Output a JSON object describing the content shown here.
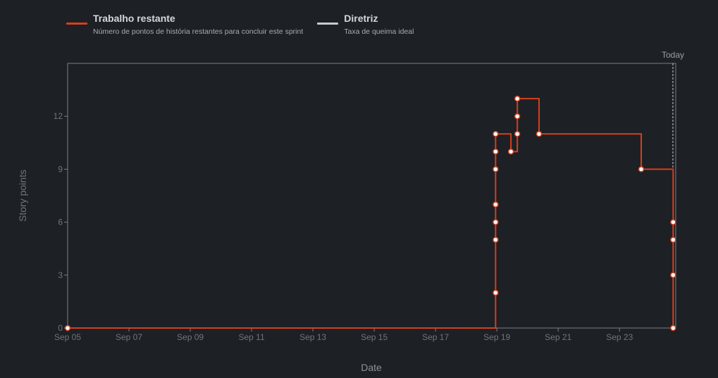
{
  "legend": [
    {
      "title": "Trabalho restante",
      "description": "Número de pontos de história restantes para concluir este sprint",
      "color": "#d4401e"
    },
    {
      "title": "Diretriz",
      "description": "Taxa de queima ideal",
      "color": "#c5cad3"
    }
  ],
  "chart_data": {
    "type": "line",
    "xlabel": "Date",
    "ylabel": "Story points",
    "today_label": "Today",
    "xlim": [
      "2018-09-05",
      "2018-09-24 20:00"
    ],
    "ylim": [
      0,
      15
    ],
    "x_ticks": [
      "Sep 05",
      "Sep 07",
      "Sep 09",
      "Sep 11",
      "Sep 13",
      "Sep 15",
      "Sep 17",
      "Sep 19",
      "Sep 21",
      "Sep 23"
    ],
    "y_ticks": [
      0,
      3,
      6,
      9,
      12
    ],
    "today": "2018-09-24 20:00",
    "series": [
      {
        "name": "Trabalho restante",
        "color": "#d4401e",
        "step": "post",
        "points": [
          {
            "x": "2018-09-05 00:00",
            "y": 0
          },
          {
            "x": "2018-09-18 23:00",
            "y": 2
          },
          {
            "x": "2018-09-18 23:00",
            "y": 5
          },
          {
            "x": "2018-09-18 23:00",
            "y": 6
          },
          {
            "x": "2018-09-18 23:00",
            "y": 7
          },
          {
            "x": "2018-09-18 23:00",
            "y": 9
          },
          {
            "x": "2018-09-18 23:00",
            "y": 10
          },
          {
            "x": "2018-09-18 23:00",
            "y": 11
          },
          {
            "x": "2018-09-19 11:00",
            "y": 10
          },
          {
            "x": "2018-09-19 16:00",
            "y": 11
          },
          {
            "x": "2018-09-19 16:00",
            "y": 12
          },
          {
            "x": "2018-09-19 16:00",
            "y": 13
          },
          {
            "x": "2018-09-20 09:00",
            "y": 11
          },
          {
            "x": "2018-09-23 17:00",
            "y": 9
          },
          {
            "x": "2018-09-24 18:00",
            "y": 6
          },
          {
            "x": "2018-09-24 18:00",
            "y": 5
          },
          {
            "x": "2018-09-24 18:00",
            "y": 3
          },
          {
            "x": "2018-09-24 18:00",
            "y": 0
          }
        ]
      }
    ],
    "grid": false
  }
}
